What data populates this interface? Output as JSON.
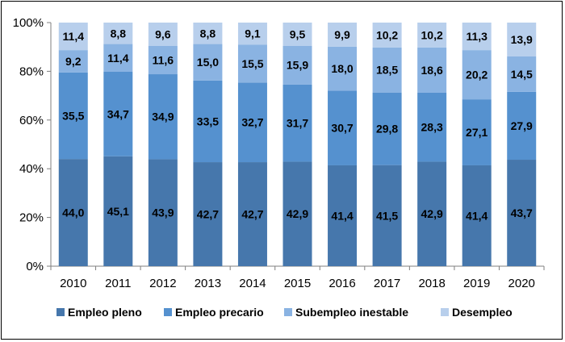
{
  "chart_data": {
    "type": "bar",
    "stacked": true,
    "percent": true,
    "categories": [
      "2010",
      "2011",
      "2012",
      "2013",
      "2014",
      "2015",
      "2016",
      "2017",
      "2018",
      "2019",
      "2020"
    ],
    "series": [
      {
        "name": "Empleo pleno",
        "color": "#4677AC",
        "values": [
          44.0,
          45.1,
          43.9,
          42.7,
          42.7,
          42.9,
          41.4,
          41.5,
          42.9,
          41.4,
          43.7
        ],
        "labels": [
          "44,0",
          "45,1",
          "43,9",
          "42,7",
          "42,7",
          "42,9",
          "41,4",
          "41,5",
          "42,9",
          "41,4",
          "43,7"
        ]
      },
      {
        "name": "Empleo precario",
        "color": "#5591CF",
        "values": [
          35.5,
          34.7,
          34.9,
          33.5,
          32.7,
          31.7,
          30.7,
          29.8,
          28.3,
          27.1,
          27.9
        ],
        "labels": [
          "35,5",
          "34,7",
          "34,9",
          "33,5",
          "32,7",
          "31,7",
          "30,7",
          "29,8",
          "28,3",
          "27,1",
          "27,9"
        ]
      },
      {
        "name": "Subempleo inestable",
        "color": "#8AB3E2",
        "values": [
          9.2,
          11.4,
          11.6,
          15.0,
          15.5,
          15.9,
          18.0,
          18.5,
          18.6,
          20.2,
          14.5
        ],
        "labels": [
          "9,2",
          "11,4",
          "11,6",
          "15,0",
          "15,5",
          "15,9",
          "18,0",
          "18,5",
          "18,6",
          "20,2",
          "14,5"
        ]
      },
      {
        "name": "Desempleo",
        "color": "#B8CFEC",
        "values": [
          11.4,
          8.8,
          9.6,
          8.8,
          9.1,
          9.5,
          9.9,
          10.2,
          10.2,
          11.3,
          13.9
        ],
        "labels": [
          "11,4",
          "8,8",
          "9,6",
          "8,8",
          "9,1",
          "9,5",
          "9,9",
          "10,2",
          "10,2",
          "11,3",
          "13,9"
        ]
      }
    ],
    "y_ticks": [
      "0%",
      "20%",
      "40%",
      "60%",
      "80%",
      "100%"
    ],
    "ylim": [
      0,
      100
    ],
    "grid": false,
    "legend": "bottom",
    "title": "",
    "xlabel": "",
    "ylabel": ""
  }
}
